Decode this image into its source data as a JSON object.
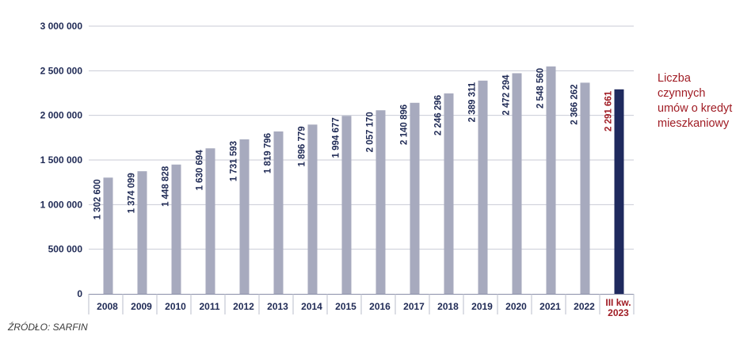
{
  "chart_data": {
    "type": "bar",
    "categories": [
      "2008",
      "2009",
      "2010",
      "2011",
      "2012",
      "2013",
      "2014",
      "2015",
      "2016",
      "2017",
      "2018",
      "2019",
      "2020",
      "2021",
      "2022",
      "III kw.\n2023"
    ],
    "values": [
      1302600,
      1374099,
      1448828,
      1630694,
      1731593,
      1819796,
      1896779,
      1994677,
      2057170,
      2140896,
      2246296,
      2389311,
      2472294,
      2548560,
      2366262,
      2291661
    ],
    "value_labels": [
      "1 302 600",
      "1 374 099",
      "1 448 828",
      "1 630 694",
      "1 731 593",
      "1 819 796",
      "1 896 779",
      "1 994 677",
      "2 057 170",
      "2 140 896",
      "2 246 296",
      "2 389 311",
      "2 472 294",
      "2 548 560",
      "2 366 262",
      "2 291 661"
    ],
    "highlight_index": 15,
    "ylim": [
      0,
      3000000
    ],
    "yticks": [
      0,
      500000,
      1000000,
      1500000,
      2000000,
      2500000,
      3000000
    ],
    "ytick_labels": [
      "0",
      "500 000",
      "1 000 000",
      "1 500 000",
      "2 000 000",
      "2 500 000",
      "3 000 000"
    ],
    "grid": true,
    "legend_text": "Liczba\nczynnych\numów o kredyt\nmieszkaniowy",
    "legend_position": "right",
    "colors": {
      "bar": "#a7aabe",
      "highlight": "#1f2a5e",
      "grid": "#c9cbd6",
      "highlight_text": "#a01c24"
    }
  },
  "source": "ŹRÓDŁO: SARFIN"
}
